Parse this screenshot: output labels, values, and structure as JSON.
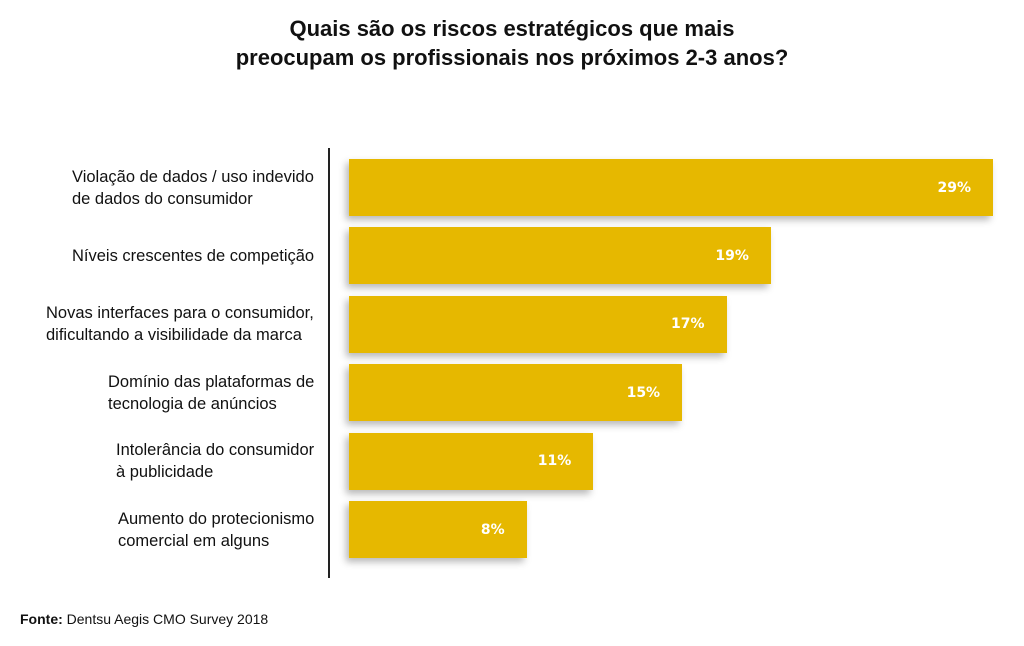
{
  "chart_data": {
    "type": "bar",
    "orientation": "horizontal",
    "title": "Quais são os riscos estratégicos que mais preocupam os profissionais nos próximos 2-3 anos?",
    "title_lines": [
      "Quais são os riscos estratégicos que mais",
      "preocupam os profissionais nos próximos 2-3 anos?"
    ],
    "categories": [
      "Violação de dados / uso indevido de dados do consumidor",
      "Níveis crescentes de competição",
      "Novas interfaces para o consumidor, dificultando a visibilidade da marca",
      "Domínio das plataformas de tecnologia de anúncios",
      "Intolerância do consumidor à publicidade",
      "Aumento do protecionismo comercial em alguns"
    ],
    "category_lines": [
      [
        "Violação de dados / uso indevido",
        "de dados do consumidor"
      ],
      [
        "Níveis crescentes de competição"
      ],
      [
        "Novas interfaces para o consumidor,",
        "dificultando a visibilidade da marca"
      ],
      [
        "Domínio das plataformas de",
        "tecnologia de anúncios"
      ],
      [
        "Intolerância do consumidor",
        "à publicidade"
      ],
      [
        "Aumento do protecionismo",
        "comercial em alguns"
      ]
    ],
    "values": [
      29,
      19,
      17,
      15,
      11,
      8
    ],
    "value_labels": [
      "29%",
      "19%",
      "17%",
      "15%",
      "11%",
      "8%"
    ],
    "unit": "%",
    "xlabel": "",
    "ylabel": "",
    "xlim": [
      0,
      29
    ],
    "grid": false,
    "legend": "none",
    "bar_color": "#E6B800",
    "value_label_color": "#FFFFFF"
  },
  "source": {
    "prefix": "Fonte:",
    "text": " Dentsu Aegis CMO Survey 2018"
  }
}
